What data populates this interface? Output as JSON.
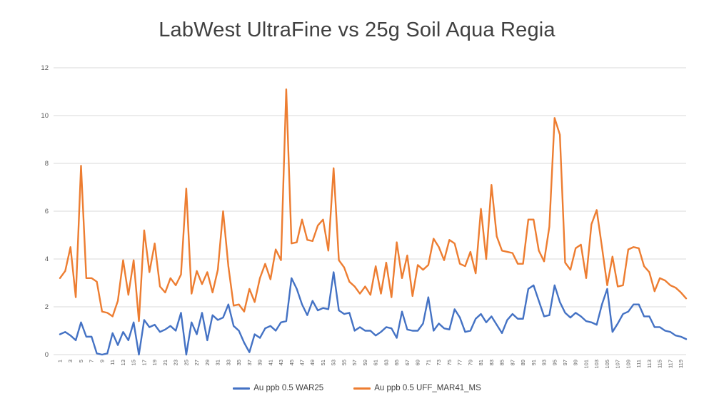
{
  "title": "LabWest UltraFine vs 25g Soil Aqua Regia",
  "styles": {
    "background": "#ffffff",
    "title_color": "#404040",
    "gridline_color": "#D9D9D9",
    "axis_label_color": "#595959",
    "legend_text_color": "#404040"
  },
  "chart_data": {
    "type": "line",
    "title": "LabWest UltraFine vs 25g Soil Aqua Regia",
    "xlabel": "",
    "ylabel": "",
    "ylim": [
      0,
      12
    ],
    "y_ticks": [
      0,
      2,
      4,
      6,
      8,
      10,
      12
    ],
    "grid": "horizontal",
    "legend_position": "bottom",
    "x_count": 120,
    "x_tick_labels": [
      "1",
      "3",
      "5",
      "7",
      "9",
      "11",
      "13",
      "15",
      "17",
      "19",
      "21",
      "23",
      "25",
      "27",
      "29",
      "31",
      "33",
      "35",
      "37",
      "39",
      "41",
      "43",
      "45",
      "47",
      "49",
      "51",
      "53",
      "55",
      "57",
      "59",
      "61",
      "63",
      "65",
      "67",
      "69",
      "71",
      "73",
      "75",
      "77",
      "79",
      "81",
      "83",
      "85",
      "87",
      "89",
      "91",
      "93",
      "95",
      "97",
      "99",
      "101",
      "103",
      "105",
      "107",
      "109",
      "111",
      "113",
      "115",
      "117",
      "119"
    ],
    "series": [
      {
        "name": "Au ppb 0.5 WAR25",
        "color": "#4472C4",
        "values": [
          0.85,
          0.95,
          0.8,
          0.6,
          1.35,
          0.75,
          0.75,
          0.05,
          0.0,
          0.05,
          0.9,
          0.4,
          0.95,
          0.6,
          1.35,
          0.0,
          1.45,
          1.15,
          1.25,
          0.95,
          1.05,
          1.2,
          1.0,
          1.75,
          0.0,
          1.35,
          0.85,
          1.75,
          0.6,
          1.65,
          1.45,
          1.55,
          2.1,
          1.2,
          1.0,
          0.5,
          0.1,
          0.85,
          0.7,
          1.1,
          1.2,
          1.0,
          1.35,
          1.4,
          3.2,
          2.75,
          2.1,
          1.65,
          2.25,
          1.85,
          1.95,
          1.9,
          3.45,
          1.85,
          1.7,
          1.75,
          1.0,
          1.15,
          1.0,
          1.0,
          0.8,
          0.95,
          1.15,
          1.1,
          0.7,
          1.8,
          1.05,
          1.0,
          1.0,
          1.3,
          2.4,
          1.0,
          1.3,
          1.1,
          1.05,
          1.9,
          1.55,
          0.95,
          1.0,
          1.5,
          1.7,
          1.35,
          1.6,
          1.25,
          0.9,
          1.45,
          1.7,
          1.5,
          1.5,
          2.75,
          2.9,
          2.25,
          1.6,
          1.65,
          2.9,
          2.2,
          1.75,
          1.55,
          1.75,
          1.6,
          1.4,
          1.35,
          1.25,
          2.1,
          2.75,
          0.95,
          1.3,
          1.7,
          1.8,
          2.1,
          2.1,
          1.6,
          1.6,
          1.15,
          1.15,
          1.0,
          0.95,
          0.8,
          0.75,
          0.65
        ]
      },
      {
        "name": "Au ppb 0.5 UFF_MAR41_MS",
        "color": "#ED7D31",
        "values": [
          3.2,
          3.5,
          4.5,
          2.4,
          7.9,
          3.2,
          3.2,
          3.05,
          1.8,
          1.75,
          1.6,
          2.25,
          3.95,
          2.5,
          3.95,
          1.4,
          5.2,
          3.45,
          4.65,
          2.85,
          2.6,
          3.2,
          2.9,
          3.35,
          6.95,
          2.55,
          3.5,
          2.95,
          3.45,
          2.6,
          3.55,
          6.0,
          3.7,
          2.05,
          2.1,
          1.8,
          2.75,
          2.2,
          3.2,
          3.8,
          3.15,
          4.4,
          3.95,
          11.1,
          4.65,
          4.7,
          5.65,
          4.8,
          4.75,
          5.4,
          5.65,
          4.35,
          7.8,
          3.95,
          3.65,
          3.05,
          2.85,
          2.55,
          2.85,
          2.5,
          3.7,
          2.55,
          3.85,
          2.4,
          4.7,
          3.2,
          4.15,
          2.45,
          3.75,
          3.55,
          3.75,
          4.85,
          4.5,
          3.95,
          4.8,
          4.65,
          3.8,
          3.7,
          4.3,
          3.4,
          6.1,
          4.0,
          7.1,
          4.95,
          4.35,
          4.3,
          4.25,
          3.8,
          3.8,
          5.65,
          5.65,
          4.35,
          3.9,
          5.35,
          9.9,
          9.2,
          3.85,
          3.55,
          4.45,
          4.6,
          3.2,
          5.45,
          6.05,
          4.5,
          2.9,
          4.1,
          2.85,
          2.9,
          4.4,
          4.5,
          4.45,
          3.7,
          3.45,
          2.65,
          3.2,
          3.1,
          2.9,
          2.8,
          2.6,
          2.35
        ]
      }
    ]
  },
  "legend": {
    "entries": [
      {
        "label": "Au ppb 0.5 WAR25"
      },
      {
        "label": "Au ppb 0.5 UFF_MAR41_MS"
      }
    ]
  }
}
